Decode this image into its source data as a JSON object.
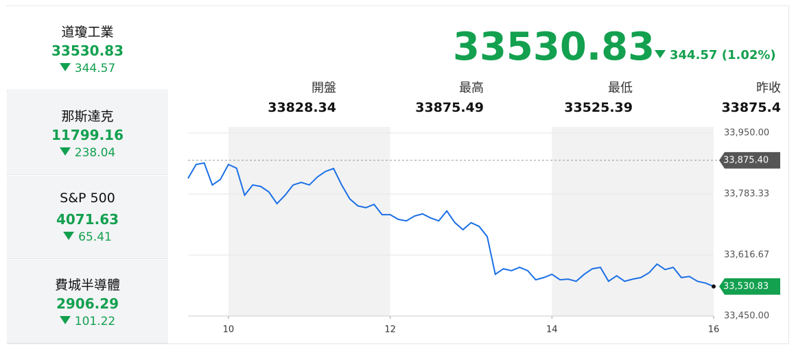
{
  "sidebar": [
    {
      "name": "道瓊工業",
      "price": 33530.83,
      "change": 344.57
    },
    {
      "name": "那斯達克",
      "price": 11799.16,
      "change": 238.04
    },
    {
      "name": "S&P 500",
      "price": 4071.63,
      "change": 65.41
    },
    {
      "name": "費城半導體",
      "price": 2906.29,
      "change": 101.22
    }
  ],
  "header": {
    "price": 33530.83,
    "change_text": "344.57 (1.02%)",
    "stats": [
      {
        "label": "開盤",
        "value": 33828.34
      },
      {
        "label": "最高",
        "value": 33875.49
      },
      {
        "label": "最低",
        "value": 33525.39
      },
      {
        "label": "昨收",
        "value": 33875.4
      }
    ]
  },
  "chart_data": {
    "type": "line",
    "x": [
      9.5,
      9.6,
      9.7,
      9.8,
      9.9,
      10.0,
      10.1,
      10.2,
      10.3,
      10.4,
      10.5,
      10.6,
      10.7,
      10.8,
      10.9,
      11.0,
      11.1,
      11.2,
      11.3,
      11.4,
      11.5,
      11.6,
      11.7,
      11.8,
      11.9,
      12.0,
      12.1,
      12.2,
      12.3,
      12.4,
      12.5,
      12.6,
      12.7,
      12.8,
      12.9,
      13.0,
      13.1,
      13.2,
      13.3,
      13.4,
      13.5,
      13.6,
      13.7,
      13.8,
      13.9,
      14.0,
      14.1,
      14.2,
      14.3,
      14.4,
      14.5,
      14.6,
      14.7,
      14.8,
      14.9,
      15.0,
      15.1,
      15.2,
      15.3,
      15.4,
      15.5,
      15.6,
      15.7,
      15.8,
      15.9,
      16.0
    ],
    "series": [
      {
        "name": "道瓊工業",
        "color": "#1a6fe6",
        "values": [
          33826,
          33864,
          33868,
          33808,
          33823,
          33864,
          33854,
          33780,
          33808,
          33804,
          33789,
          33757,
          33780,
          33808,
          33815,
          33808,
          33830,
          33845,
          33853,
          33808,
          33770,
          33751,
          33746,
          33755,
          33727,
          33727,
          33714,
          33710,
          33723,
          33729,
          33718,
          33710,
          33737,
          33705,
          33686,
          33705,
          33695,
          33667,
          33564,
          33579,
          33574,
          33583,
          33574,
          33549,
          33555,
          33564,
          33549,
          33551,
          33545,
          33564,
          33579,
          33583,
          33545,
          33560,
          33545,
          33551,
          33555,
          33568,
          33592,
          33577,
          33583,
          33555,
          33558,
          33545,
          33540,
          33530.83
        ]
      }
    ],
    "xlim": [
      9.5,
      16
    ],
    "xticks": [
      10,
      12,
      14,
      16
    ],
    "ylim": [
      33450,
      33950
    ],
    "yticks": [
      {
        "value": 33450,
        "label": "33,450.00"
      },
      {
        "value": 33616.67,
        "label": "33,616.67"
      },
      {
        "value": 33783.33,
        "label": "33,783.33"
      },
      {
        "value": 33950,
        "label": "33,950.00"
      }
    ],
    "reference_line": {
      "value": 33875.4,
      "label": "33,875.40"
    },
    "last_label": {
      "value": 33530.83,
      "label": "33,530.83"
    },
    "grid": true
  }
}
